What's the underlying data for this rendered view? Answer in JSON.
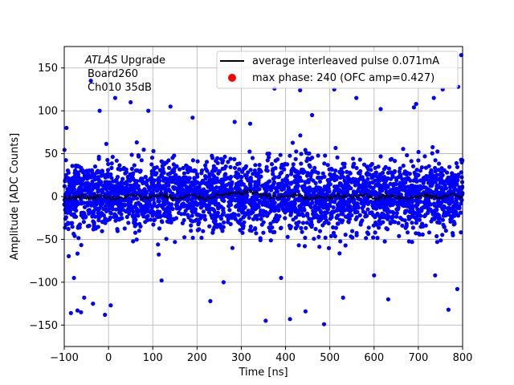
{
  "chart_data": {
    "type": "scatter",
    "xlabel": "Time [ns]",
    "ylabel": "Amplitude [ADC Counts]",
    "xlim": [
      -100,
      800
    ],
    "ylim": [
      -175,
      175
    ],
    "xticks": [
      -100,
      0,
      100,
      200,
      300,
      400,
      500,
      600,
      700,
      800
    ],
    "yticks": [
      -150,
      -100,
      -50,
      0,
      50,
      100,
      150
    ],
    "grid": true,
    "legend_position": "top-right",
    "annotation": {
      "line1_italic": "ATLAS",
      "line1_rest": " Upgrade",
      "line2": "Board260",
      "line3": "Ch010 35dB"
    },
    "series": [
      {
        "name": "average interleaved pulse 0.071mA",
        "kind": "line",
        "color": "#000000",
        "x": [
          -100,
          -80,
          -60,
          -40,
          -20,
          0,
          20,
          40,
          60,
          80,
          100,
          120,
          140,
          160,
          180,
          200,
          220,
          240,
          260,
          280,
          300,
          320,
          340,
          360,
          380,
          400,
          420,
          440,
          460,
          480,
          500,
          520,
          540,
          560,
          580,
          600,
          620,
          640,
          660,
          680,
          700,
          720,
          740,
          760,
          780,
          800
        ],
        "y": [
          -2,
          -1,
          0,
          -2,
          1,
          -1,
          -3,
          0,
          1,
          -2,
          0,
          2,
          -1,
          -3,
          1,
          0,
          -2,
          1,
          2,
          3,
          4,
          6,
          3,
          1,
          -1,
          0,
          2,
          -1,
          -3,
          0,
          -2,
          1,
          0,
          -1,
          2,
          -2,
          0,
          1,
          -1,
          -2,
          0,
          1,
          -1,
          0,
          2,
          -1
        ]
      },
      {
        "name": "max phase: 240 (OFC amp=0.427)",
        "kind": "scatter",
        "color": "#0000ff",
        "legend_color": "#ff0000",
        "noise_sigma": 20,
        "outliers": [
          {
            "x": -95,
            "y": 80
          },
          {
            "x": -85,
            "y": -136
          },
          {
            "x": -70,
            "y": -133
          },
          {
            "x": -62,
            "y": -135
          },
          {
            "x": -55,
            "y": -118
          },
          {
            "x": -40,
            "y": 135
          },
          {
            "x": -35,
            "y": -125
          },
          {
            "x": -20,
            "y": 100
          },
          {
            "x": -8,
            "y": -138
          },
          {
            "x": 5,
            "y": -127
          },
          {
            "x": 15,
            "y": 115
          },
          {
            "x": 50,
            "y": 110
          },
          {
            "x": 90,
            "y": 100
          },
          {
            "x": 140,
            "y": 105
          },
          {
            "x": 190,
            "y": 92
          },
          {
            "x": 230,
            "y": -122
          },
          {
            "x": 285,
            "y": 87
          },
          {
            "x": 320,
            "y": 85
          },
          {
            "x": 355,
            "y": -145
          },
          {
            "x": 375,
            "y": 126
          },
          {
            "x": 410,
            "y": -143
          },
          {
            "x": 433,
            "y": 124
          },
          {
            "x": 445,
            "y": -134
          },
          {
            "x": 487,
            "y": -149
          },
          {
            "x": 510,
            "y": 125
          },
          {
            "x": 530,
            "y": -118
          },
          {
            "x": 560,
            "y": 115
          },
          {
            "x": 615,
            "y": 102
          },
          {
            "x": 632,
            "y": -120
          },
          {
            "x": 690,
            "y": 104
          },
          {
            "x": 695,
            "y": 108
          },
          {
            "x": 735,
            "y": 115
          },
          {
            "x": 738,
            "y": -92
          },
          {
            "x": 755,
            "y": 125
          },
          {
            "x": 768,
            "y": -132
          },
          {
            "x": 790,
            "y": 128
          },
          {
            "x": 788,
            "y": -108
          },
          {
            "x": 797,
            "y": 165
          },
          {
            "x": -78,
            "y": -95
          },
          {
            "x": 120,
            "y": -98
          },
          {
            "x": 260,
            "y": -100
          },
          {
            "x": 390,
            "y": -95
          },
          {
            "x": 460,
            "y": 95
          },
          {
            "x": 600,
            "y": -92
          }
        ]
      }
    ]
  }
}
